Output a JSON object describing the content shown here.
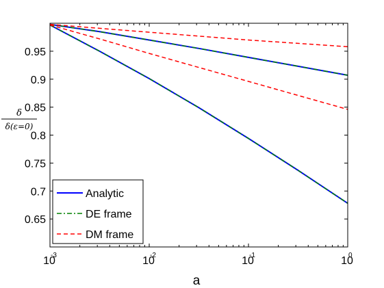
{
  "chart_data": {
    "type": "line",
    "xlabel": "a",
    "ylabel_numerator": "δ",
    "ylabel_denominator": "δ(ε=0)",
    "xscale": "log",
    "xlim": [
      0.001,
      1
    ],
    "ylim": [
      0.6,
      1.0
    ],
    "x_ticks": [
      {
        "value": 0.001,
        "base": "10",
        "exp": "-3"
      },
      {
        "value": 0.01,
        "base": "10",
        "exp": "-2"
      },
      {
        "value": 0.1,
        "base": "10",
        "exp": "-1"
      },
      {
        "value": 1,
        "base": "10",
        "exp": "0"
      }
    ],
    "y_ticks": [
      {
        "value": 0.65,
        "label": "0.65"
      },
      {
        "value": 0.7,
        "label": "0.7"
      },
      {
        "value": 0.75,
        "label": "0.75"
      },
      {
        "value": 0.8,
        "label": "0.8"
      },
      {
        "value": 0.85,
        "label": "0.85"
      },
      {
        "value": 0.9,
        "label": "0.9"
      },
      {
        "value": 0.95,
        "label": "0.95"
      }
    ],
    "grid": false,
    "legend_position": "bottom-left",
    "x": [
      0.001,
      0.00316,
      0.01,
      0.0316,
      0.1,
      0.316,
      1.0
    ],
    "series": [
      {
        "name": "Analytic",
        "color": "#0000ff",
        "dash": "solid",
        "curves": [
          [
            0.998,
            0.985,
            0.97,
            0.955,
            0.939,
            0.923,
            0.907
          ],
          [
            0.997,
            0.95,
            0.901,
            0.849,
            0.794,
            0.737,
            0.678
          ]
        ]
      },
      {
        "name": "DE frame",
        "color": "#008000",
        "dash": "dashdot",
        "curves": [
          [
            0.998,
            0.985,
            0.97,
            0.955,
            0.939,
            0.923,
            0.907
          ],
          [
            0.997,
            0.95,
            0.901,
            0.849,
            0.794,
            0.737,
            0.678
          ]
        ]
      },
      {
        "name": "DM frame",
        "color": "#ff0000",
        "dash": "dashed",
        "curves": [
          [
            0.998,
            0.991,
            0.984,
            0.977,
            0.97,
            0.964,
            0.958
          ],
          [
            0.997,
            0.972,
            0.946,
            0.921,
            0.896,
            0.871,
            0.846
          ]
        ]
      }
    ]
  }
}
